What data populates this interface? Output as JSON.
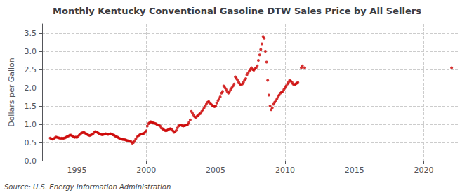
{
  "chart_data": {
    "type": "scatter",
    "title": "Monthly Kentucky Conventional Gasoline DTW Sales Price by All Sellers",
    "ylabel": "Dollars per Gallon",
    "annotations": [
      "Source: U.S. Energy Information Administration"
    ],
    "color": "#cc0000",
    "grid": true,
    "xlim": [
      1992.5,
      2022.5
    ],
    "xticks": [
      1995,
      2000,
      2005,
      2010,
      2015,
      2020
    ],
    "ylim": [
      0.0,
      3.75
    ],
    "yticks": [
      {
        "value": 0.0,
        "label": "0.0"
      },
      0.5,
      {
        "value": 1.0,
        "label": "1.0"
      },
      1.5,
      {
        "value": 2.0,
        "label": "2.0"
      },
      2.5,
      {
        "value": 3.0,
        "label": "3.0"
      },
      3.5
    ],
    "x": [
      1993.08,
      1993.17,
      1993.25,
      1993.33,
      1993.42,
      1993.5,
      1993.58,
      1993.67,
      1993.75,
      1993.83,
      1993.92,
      1994.0,
      1994.08,
      1994.17,
      1994.25,
      1994.33,
      1994.42,
      1994.5,
      1994.58,
      1994.67,
      1994.75,
      1994.83,
      1994.92,
      1995.0,
      1995.08,
      1995.17,
      1995.25,
      1995.33,
      1995.42,
      1995.5,
      1995.58,
      1995.67,
      1995.75,
      1995.83,
      1995.92,
      1996.0,
      1996.08,
      1996.17,
      1996.25,
      1996.33,
      1996.42,
      1996.5,
      1996.58,
      1996.67,
      1996.75,
      1996.83,
      1996.92,
      1997.0,
      1997.08,
      1997.17,
      1997.25,
      1997.33,
      1997.42,
      1997.5,
      1997.58,
      1997.67,
      1997.75,
      1997.83,
      1997.92,
      1998.0,
      1998.08,
      1998.17,
      1998.25,
      1998.33,
      1998.42,
      1998.5,
      1998.58,
      1998.67,
      1998.75,
      1998.83,
      1998.92,
      1999.0,
      1999.08,
      1999.17,
      1999.25,
      1999.33,
      1999.42,
      1999.5,
      1999.58,
      1999.67,
      1999.75,
      1999.83,
      1999.92,
      2000.0,
      2000.08,
      2000.17,
      2000.25,
      2000.33,
      2000.42,
      2000.5,
      2000.58,
      2000.67,
      2000.75,
      2000.83,
      2000.92,
      2001.0,
      2001.08,
      2001.17,
      2001.25,
      2001.33,
      2001.42,
      2001.5,
      2001.58,
      2001.67,
      2001.75,
      2001.83,
      2001.92,
      2002.0,
      2002.08,
      2002.17,
      2002.25,
      2002.33,
      2002.42,
      2002.5,
      2002.58,
      2002.67,
      2002.75,
      2002.83,
      2002.92,
      2003.0,
      2003.08,
      2003.17,
      2003.25,
      2003.33,
      2003.42,
      2003.5,
      2003.58,
      2003.67,
      2003.75,
      2003.83,
      2003.92,
      2004.0,
      2004.08,
      2004.17,
      2004.25,
      2004.33,
      2004.42,
      2004.5,
      2004.58,
      2004.67,
      2004.75,
      2004.83,
      2004.92,
      2005.0,
      2005.08,
      2005.17,
      2005.25,
      2005.33,
      2005.42,
      2005.5,
      2005.58,
      2005.67,
      2005.75,
      2005.83,
      2005.92,
      2006.0,
      2006.08,
      2006.17,
      2006.25,
      2006.33,
      2006.42,
      2006.5,
      2006.58,
      2006.67,
      2006.75,
      2006.83,
      2006.92,
      2007.0,
      2007.08,
      2007.17,
      2007.25,
      2007.33,
      2007.42,
      2007.5,
      2007.58,
      2007.67,
      2007.75,
      2007.83,
      2007.92,
      2008.0,
      2008.08,
      2008.17,
      2008.25,
      2008.33,
      2008.42,
      2008.5,
      2008.58,
      2008.67,
      2008.75,
      2008.83,
      2008.92,
      2009.0,
      2009.08,
      2009.17,
      2009.25,
      2009.33,
      2009.42,
      2009.5,
      2009.58,
      2009.67,
      2009.75,
      2009.83,
      2009.92,
      2010.0,
      2010.08,
      2010.17,
      2010.25,
      2010.33,
      2010.42,
      2010.5,
      2010.58,
      2010.67,
      2010.75,
      2010.83,
      2010.92,
      2011.17,
      2011.25,
      2011.42,
      2022.0
    ],
    "values": [
      0.62,
      0.6,
      0.59,
      0.6,
      0.63,
      0.65,
      0.64,
      0.63,
      0.62,
      0.61,
      0.62,
      0.61,
      0.62,
      0.63,
      0.65,
      0.67,
      0.68,
      0.7,
      0.7,
      0.68,
      0.66,
      0.64,
      0.65,
      0.64,
      0.66,
      0.7,
      0.73,
      0.76,
      0.77,
      0.78,
      0.76,
      0.74,
      0.72,
      0.7,
      0.69,
      0.7,
      0.72,
      0.74,
      0.78,
      0.8,
      0.79,
      0.77,
      0.75,
      0.73,
      0.72,
      0.71,
      0.72,
      0.73,
      0.74,
      0.73,
      0.72,
      0.73,
      0.74,
      0.73,
      0.71,
      0.7,
      0.68,
      0.66,
      0.65,
      0.63,
      0.61,
      0.6,
      0.59,
      0.58,
      0.58,
      0.57,
      0.56,
      0.55,
      0.54,
      0.53,
      0.52,
      0.48,
      0.5,
      0.55,
      0.6,
      0.65,
      0.68,
      0.7,
      0.72,
      0.73,
      0.74,
      0.75,
      0.78,
      0.82,
      0.95,
      1.02,
      1.05,
      1.07,
      1.05,
      1.04,
      1.03,
      1.02,
      1.0,
      0.98,
      0.97,
      0.95,
      0.9,
      0.88,
      0.85,
      0.83,
      0.82,
      0.83,
      0.85,
      0.87,
      0.88,
      0.86,
      0.82,
      0.78,
      0.8,
      0.83,
      0.9,
      0.95,
      0.97,
      0.98,
      0.96,
      0.95,
      0.96,
      0.97,
      0.98,
      1.0,
      1.05,
      1.12,
      1.35,
      1.3,
      1.25,
      1.2,
      1.18,
      1.22,
      1.25,
      1.28,
      1.3,
      1.35,
      1.4,
      1.45,
      1.5,
      1.55,
      1.6,
      1.62,
      1.58,
      1.55,
      1.52,
      1.5,
      1.48,
      1.5,
      1.58,
      1.65,
      1.7,
      1.75,
      1.85,
      1.9,
      2.05,
      2.0,
      1.95,
      1.9,
      1.85,
      1.9,
      1.95,
      2.0,
      2.05,
      2.1,
      2.3,
      2.25,
      2.2,
      2.15,
      2.1,
      2.08,
      2.1,
      2.15,
      2.2,
      2.25,
      2.35,
      2.4,
      2.45,
      2.5,
      2.55,
      2.5,
      2.48,
      2.52,
      2.55,
      2.6,
      2.75,
      2.9,
      3.05,
      3.2,
      3.4,
      3.35,
      3.0,
      2.7,
      2.2,
      1.8,
      1.5,
      1.4,
      1.45,
      1.55,
      1.6,
      1.65,
      1.7,
      1.75,
      1.8,
      1.85,
      1.88,
      1.9,
      1.95,
      2.0,
      2.05,
      2.1,
      2.15,
      2.2,
      2.18,
      2.15,
      2.1,
      2.08,
      2.1,
      2.12,
      2.15,
      2.55,
      2.6,
      2.55,
      2.55
    ]
  }
}
